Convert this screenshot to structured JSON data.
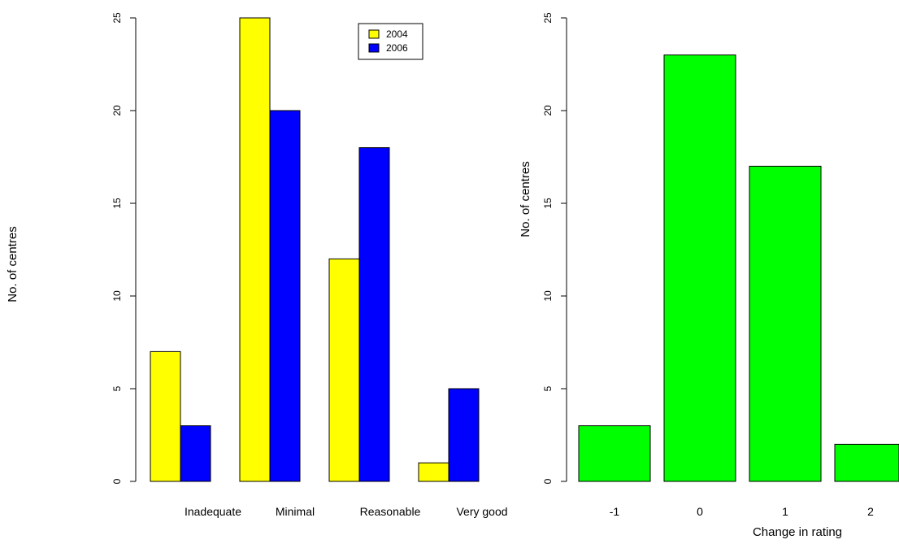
{
  "chart_data": [
    {
      "type": "bar",
      "categories": [
        "Inadequate",
        "Minimal",
        "Reasonable",
        "Very good"
      ],
      "series": [
        {
          "name": "2004",
          "values": [
            7,
            25,
            12,
            1
          ],
          "color": "#ffff00"
        },
        {
          "name": "2006",
          "values": [
            3,
            20,
            18,
            5
          ],
          "color": "#0000ff"
        }
      ],
      "ylabel": "No. of centres",
      "xlabel": "",
      "ylim": [
        0,
        25
      ],
      "yticks": [
        0,
        5,
        10,
        15,
        20,
        25
      ],
      "legend": "top-right",
      "grid": false
    },
    {
      "type": "bar",
      "categories": [
        "-1",
        "0",
        "1",
        "2"
      ],
      "values": [
        3,
        23,
        17,
        2
      ],
      "color": "#00ff00",
      "ylabel": "No. of centres",
      "xlabel": "Change in rating",
      "ylim": [
        0,
        25
      ],
      "yticks": [
        0,
        5,
        10,
        15,
        20,
        25
      ],
      "grid": false
    }
  ]
}
